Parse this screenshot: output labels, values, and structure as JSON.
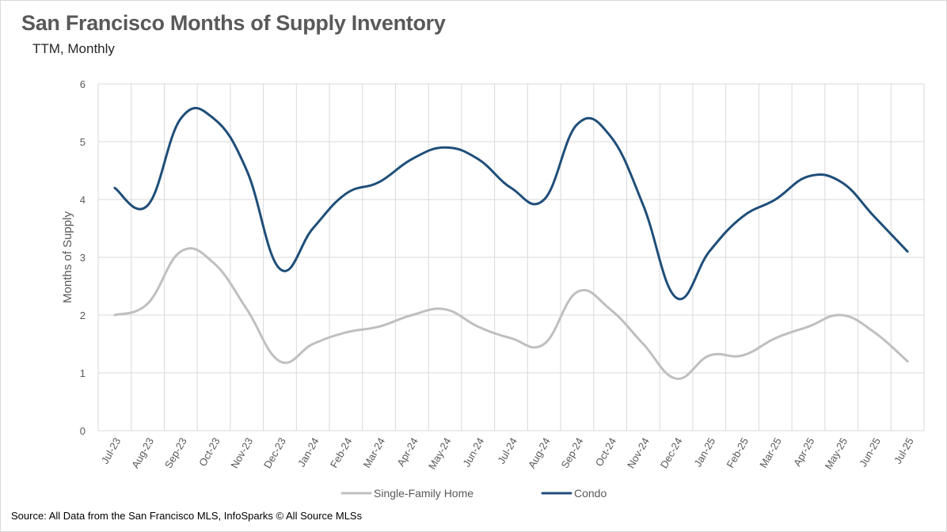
{
  "title": "San Francisco Months of Supply Inventory",
  "subtitle": "TTM, Monthly",
  "source": "Source: All Data from the San Francisco MLS, InfoSparks © All Source MLSs",
  "chart_data": {
    "type": "line",
    "title": "San Francisco Months of Supply Inventory",
    "subtitle": "TTM, Monthly",
    "ylabel": "Months of Supply",
    "xlabel": "",
    "ylim": [
      0,
      6
    ],
    "yticks": [
      0,
      1,
      2,
      3,
      4,
      5,
      6
    ],
    "grid": true,
    "legend_position": "bottom",
    "categories": [
      "Jul-23",
      "Aug-23",
      "Sep-23",
      "Oct-23",
      "Nov-23",
      "Dec-23",
      "Jan-24",
      "Feb-24",
      "Mar-24",
      "Apr-24",
      "May-24",
      "Jun-24",
      "Jul-24",
      "Aug-24",
      "Sep-24",
      "Oct-24",
      "Nov-24",
      "Dec-24",
      "Jan-25",
      "Feb-25",
      "Mar-25",
      "Apr-25",
      "May-25",
      "Jun-25",
      "Jul-25"
    ],
    "series": [
      {
        "name": "Single-Family Home",
        "color": "#bfbfbf",
        "values": [
          2.0,
          2.2,
          3.1,
          2.9,
          2.1,
          1.2,
          1.5,
          1.7,
          1.8,
          2.0,
          2.1,
          1.8,
          1.6,
          1.5,
          2.4,
          2.1,
          1.5,
          0.9,
          1.3,
          1.3,
          1.6,
          1.8,
          2.0,
          1.7,
          1.2
        ]
      },
      {
        "name": "Condo",
        "color": "#1f4e79",
        "values": [
          4.2,
          3.9,
          5.4,
          5.4,
          4.5,
          2.8,
          3.5,
          4.1,
          4.3,
          4.7,
          4.9,
          4.7,
          4.2,
          4.0,
          5.3,
          5.1,
          3.9,
          2.3,
          3.1,
          3.7,
          4.0,
          4.4,
          4.3,
          3.7,
          3.1
        ]
      }
    ]
  }
}
